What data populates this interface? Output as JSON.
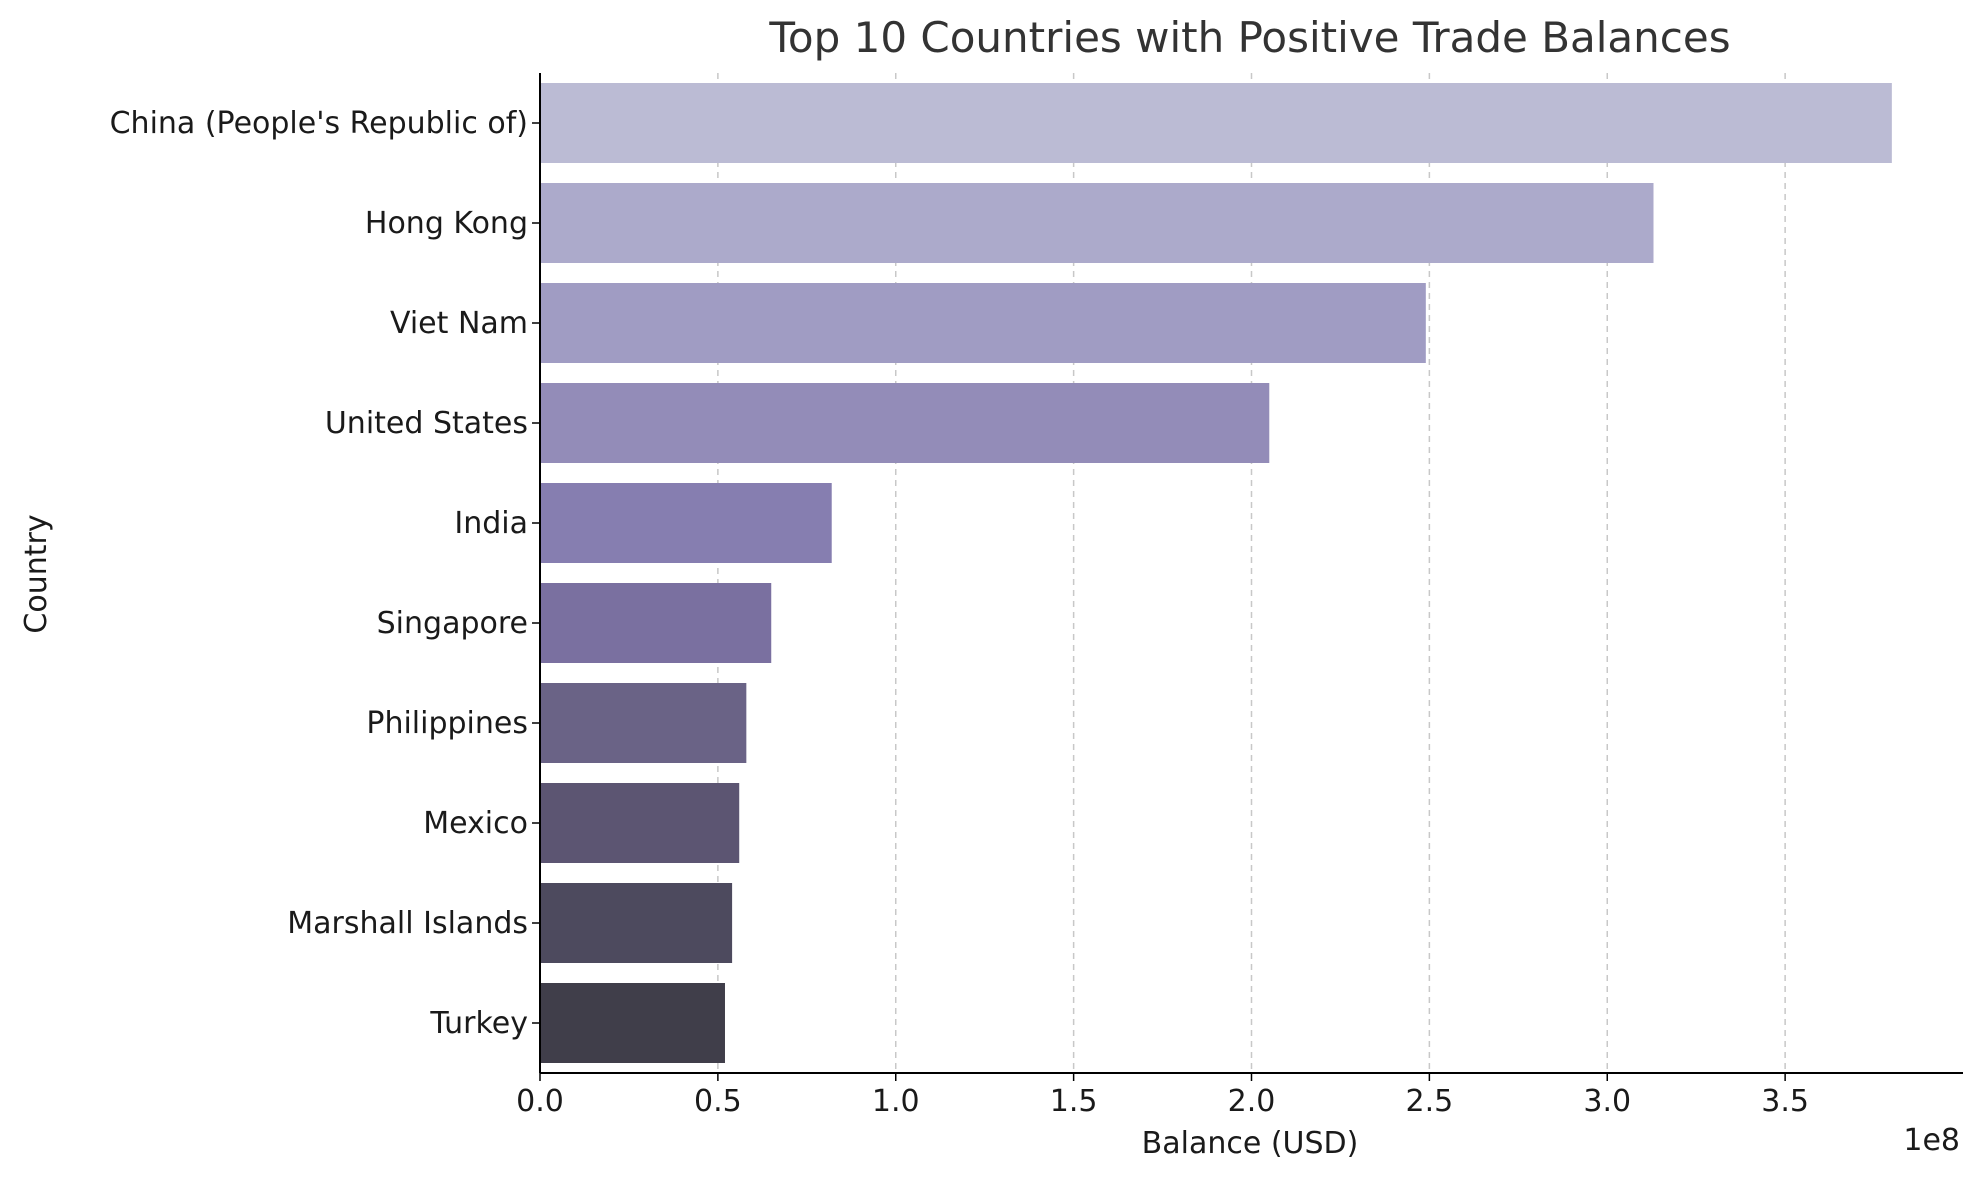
{
  "chart_data": {
    "type": "bar",
    "orientation": "horizontal",
    "title": "Top 10 Countries with Positive Trade Balances",
    "xlabel": "Balance (USD)",
    "ylabel": "Country",
    "x_offset_label": "1e8",
    "x_scale_factor": 100000000,
    "xlim": [
      0,
      400000000
    ],
    "x_ticks": [
      0,
      50000000,
      100000000,
      150000000,
      200000000,
      250000000,
      300000000,
      350000000
    ],
    "x_tick_labels": [
      "0.0",
      "0.5",
      "1.0",
      "1.5",
      "2.0",
      "2.5",
      "3.0",
      "3.5"
    ],
    "grid": "x-major-dashed",
    "categories": [
      "China (People's Republic of)",
      "Hong Kong",
      "Viet Nam",
      "United States",
      "India",
      "Singapore",
      "Philippines",
      "Mexico",
      "Marshall Islands",
      "Turkey"
    ],
    "values": [
      380000000,
      313000000,
      249000000,
      205000000,
      82000000,
      65000000,
      58000000,
      56000000,
      54000000,
      52000000
    ],
    "colors": [
      "#bbbbd4",
      "#acaacb",
      "#a09cc3",
      "#938cb8",
      "#867eb0",
      "#7a70a0",
      "#6a6386",
      "#5c5572",
      "#4d4a5e",
      "#403e4a"
    ]
  }
}
